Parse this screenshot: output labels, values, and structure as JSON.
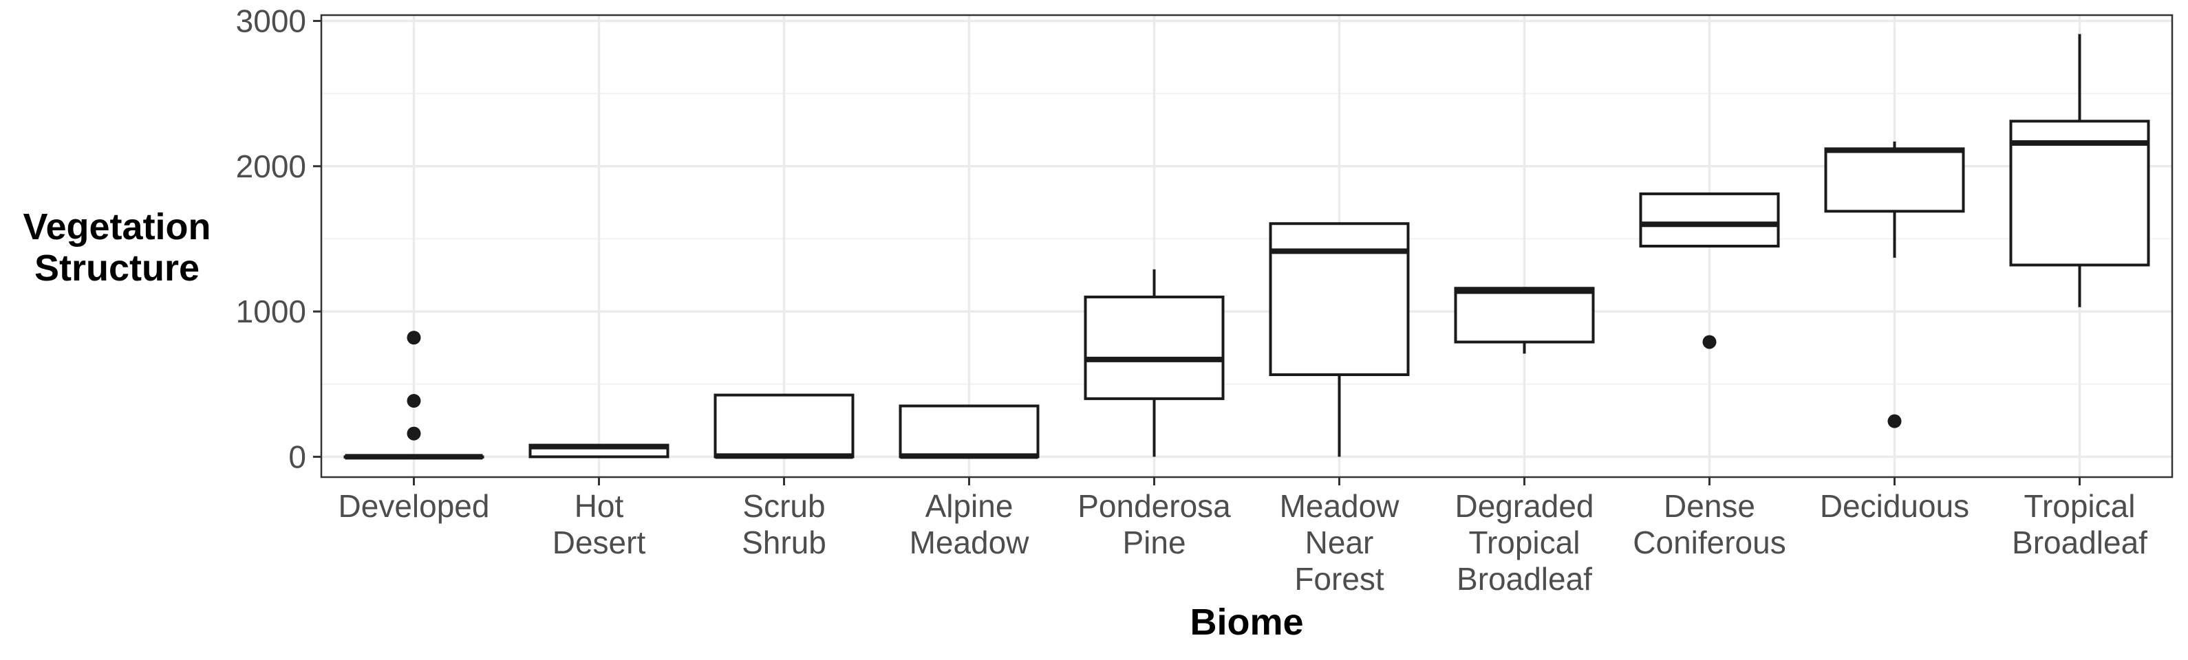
{
  "chart_data": {
    "type": "box",
    "xlabel": "Biome",
    "ylabel": [
      "Vegetation",
      "Structure"
    ],
    "ylim": [
      -140,
      3040
    ],
    "yticks": [
      0,
      1000,
      2000,
      3000
    ],
    "grid": true,
    "legend": "none",
    "categories": [
      [
        "Developed"
      ],
      [
        "Hot",
        "Desert"
      ],
      [
        "Scrub",
        "Shrub"
      ],
      [
        "Alpine",
        "Meadow"
      ],
      [
        "Ponderosa",
        "Pine"
      ],
      [
        "Meadow",
        "Near",
        "Forest"
      ],
      [
        "Degraded",
        "Tropical",
        "Broadleaf"
      ],
      [
        "Dense",
        "Coniferous"
      ],
      [
        "Deciduous"
      ],
      [
        "Tropical",
        "Broadleaf"
      ]
    ],
    "boxes": [
      {
        "whisker_low": 0,
        "q1": 0,
        "median": 0,
        "q3": 0,
        "whisker_high": 0,
        "outliers": [
          820,
          385,
          160
        ]
      },
      {
        "whisker_low": 0,
        "q1": 0,
        "median": 70,
        "q3": 80,
        "whisker_high": 80,
        "outliers": []
      },
      {
        "whisker_low": 0,
        "q1": 0,
        "median": 5,
        "q3": 425,
        "whisker_high": 425,
        "outliers": []
      },
      {
        "whisker_low": 0,
        "q1": 0,
        "median": 5,
        "q3": 350,
        "whisker_high": 350,
        "outliers": []
      },
      {
        "whisker_low": 0,
        "q1": 400,
        "median": 670,
        "q3": 1100,
        "whisker_high": 1290,
        "outliers": []
      },
      {
        "whisker_low": 0,
        "q1": 565,
        "median": 1415,
        "q3": 1605,
        "whisker_high": 1605,
        "outliers": []
      },
      {
        "whisker_low": 710,
        "q1": 790,
        "median": 1140,
        "q3": 1160,
        "whisker_high": 1160,
        "outliers": []
      },
      {
        "whisker_low": 1450,
        "q1": 1450,
        "median": 1600,
        "q3": 1810,
        "whisker_high": 1810,
        "outliers": [
          790
        ]
      },
      {
        "whisker_low": 1370,
        "q1": 1690,
        "median": 2110,
        "q3": 2120,
        "whisker_high": 2170,
        "outliers": [
          245
        ]
      },
      {
        "whisker_low": 1030,
        "q1": 1320,
        "median": 2160,
        "q3": 2310,
        "whisker_high": 2910,
        "outliers": []
      }
    ],
    "colors": {
      "box_stroke": "#1a1a1a",
      "box_fill": "#ffffff",
      "grid_major": "#ebebeb",
      "grid_minor": "#f3f3f3",
      "panel_border": "#333333",
      "tick_text": "#4d4d4d"
    }
  }
}
